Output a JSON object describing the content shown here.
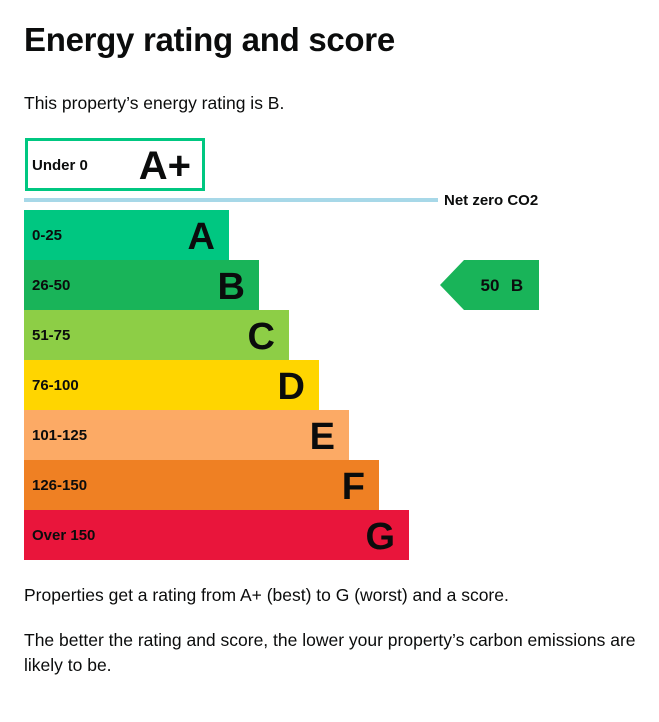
{
  "page": {
    "title": "Energy rating and score",
    "intro": "This property’s energy rating is B.",
    "footer_1": "Properties get a rating from A+ (best) to G (worst) and a score.",
    "footer_2": "The better the rating and score, the lower your property’s carbon emissions are likely to be."
  },
  "chart_data": {
    "type": "bar",
    "top_band": {
      "range": "Under 0",
      "letter": "A+",
      "color": "#00c781"
    },
    "net_zero_label": "Net zero CO2",
    "net_zero_line_color": "#a7d8e8",
    "bands": [
      {
        "range": "0-25",
        "letter": "A",
        "color": "#00c781"
      },
      {
        "range": "26-50",
        "letter": "B",
        "color": "#19b459"
      },
      {
        "range": "51-75",
        "letter": "C",
        "color": "#8dce46"
      },
      {
        "range": "76-100",
        "letter": "D",
        "color": "#ffd500"
      },
      {
        "range": "101-125",
        "letter": "E",
        "color": "#fcaa65"
      },
      {
        "range": "126-150",
        "letter": "F",
        "color": "#ef8023"
      },
      {
        "range": "Over 150",
        "letter": "G",
        "color": "#e9153b"
      }
    ],
    "current": {
      "score": "50",
      "letter": "B",
      "band_index": 1,
      "color": "#19b459"
    }
  }
}
